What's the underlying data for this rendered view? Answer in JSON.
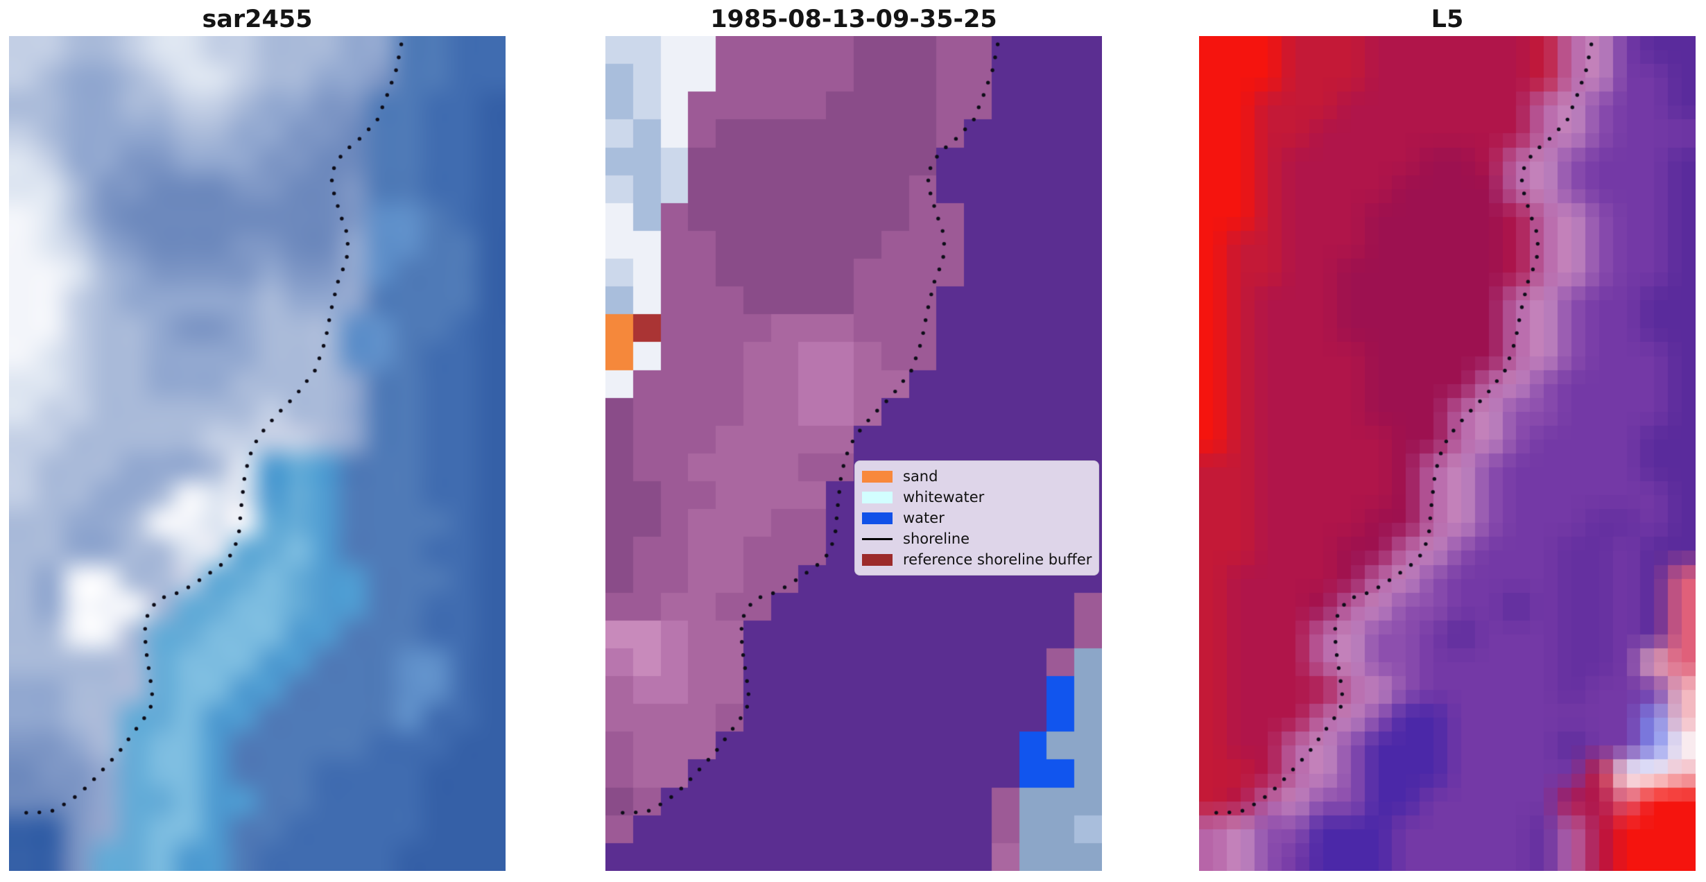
{
  "figure": {
    "background": "#ffffff",
    "kind": "three-panel satellite shoreline figure"
  },
  "legend": {
    "items": [
      {
        "label": "sand",
        "type": "patch",
        "color": "#f8883b"
      },
      {
        "label": "whitewater",
        "type": "patch",
        "color": "#d2feff"
      },
      {
        "label": "water",
        "type": "patch",
        "color": "#1151e8"
      },
      {
        "label": "shoreline",
        "type": "line",
        "color": "#000000"
      },
      {
        "label": "reference shoreline buffer",
        "type": "patch",
        "color": "#9c2b2b"
      }
    ]
  },
  "chart_data": {
    "type": "image",
    "layout": "1x3 image panels, no axes, shared dotted shoreline overlay",
    "grid_cols": 18,
    "grid_rows": 30,
    "panels": [
      {
        "title": "sar2455",
        "render": "smooth",
        "palette": {
          "a": "#f3f5fa",
          "b": "#dde5f1",
          "c": "#c3cfe5",
          "d": "#a9bad9",
          "e": "#92a8d0",
          "f": "#7d96c5",
          "g": "#6d89bd",
          "h": "#4f7ab7",
          "i": "#406cb0",
          "j": "#3560a7",
          "k": "#5f8fc9",
          "l": "#4f9bd1",
          "m": "#64abd7",
          "n": "#7cbce0"
        },
        "grid": [
          "ccddcbbccdddeehhii",
          "cdeedcbbcddeefhhii",
          "ddeeddccdeeffhhiij",
          "cdeeeeddeeffghhiij",
          "bceeffeeeffgghhiij",
          "bbdffgggffggfhhiij",
          "abdfggggggggfkkhij",
          "abcefgggffggekkhhj",
          "aabdeffffeffekhhhj",
          "aacdeeeeedeeehhhhj",
          "aacddeffedddkkhhij",
          "abcddeeeedddkkhiij",
          "bbcddeeeddddehhiij",
          "bccddddddcddehhiij",
          "ccdddddccccdehhiij",
          "cdddeeedblmlhhhiij",
          "cddeedabblmlhhhiij",
          "ddeedaabammlhhhhij",
          "ddeeddbbmmnlhhhiij",
          "deaaddcmmnmllhhhij",
          "deaaadmmnnmllhhiij",
          "ddaadmmnnnllhhhiij",
          "dddddmnnnllhhhkkij",
          "eedddmnnllhhhhkkij",
          "eeddmmnllhhhhhkiij",
          "ffedmnnlhhhhhiiijj",
          "gffemnnlhhhiiiijjj",
          "ggfemmnllhhiiiijjj",
          "jjfemnnlhhiiiiijjj",
          "jjfmmnllhiiiiijjjj"
        ]
      },
      {
        "title": "1985-08-13-09-35-25",
        "render": "blocky",
        "palette": {
          "P": "#5b2e91",
          "q": "#8a4c89",
          "r": "#9d5a96",
          "s": "#aa67a0",
          "t": "#b876ae",
          "u": "#c88abb",
          "v": "#eef1f8",
          "w": "#ccd8eb",
          "x": "#a9bedc",
          "O": "#f5883b",
          "R": "#aa3434",
          "B": "#1155ee",
          "Y": "#8ca6c8"
        },
        "grid": [
          "wwvvrrrrrqqqrrPPPP",
          "xwvvrrrrrqqqrrPPPP",
          "xwvrrrrrqqqqrrPPPP",
          "wxvrqqqqqqqqrPPPPP",
          "xxwqqqqqqqqqPPPPPP",
          "wxwqqqqqqqqrPPPPPP",
          "vxrqqqqqqqqrrPPPPP",
          "vvrrqqqqqqrrrPPPPP",
          "wvrrqqqqqrrrrPPPPP",
          "xvrrrqqqqrrrPPPPPP",
          "ORrrrrsssrrrPPPPPP",
          "OvrrrssttsrrPPPPPP",
          "vrrrrssttssPPPPPPP",
          "qrrrrssttsPPPPPPPP",
          "qrrrsssssPPPPPPPPP",
          "qrrssssrrPPPPPPPPP",
          "qqrrssssPPPPPPPPPP",
          "qqrsssrrPPPPPPPPPP",
          "qrrssrrrPPPPPPPPPP",
          "qrrssrrPPPPPPPPPPP",
          "rrssrrPPPPPPPPPPPr",
          "uutssPPPPPPPPPPPPr",
          "tutssPPPPPPPPPPPrY",
          "sttssPPPPPPPPPPPBY",
          "ssssrPPPPPPPPPPPBY",
          "rsssPPPPPPPPPPPBYY",
          "rssPPPPPPPPPPPPBBY",
          "qrPPPPPPPPPPPPrYYY",
          "rPPPPPPPPPPPPPrYYx",
          "PPPPPPPPPPPPPPsYYY"
        ]
      },
      {
        "title": "L5",
        "render": "hybrid",
        "palette": {
          "A": "#f5140e",
          "D": "#c41937",
          "E": "#b0154a",
          "F": "#9d1150",
          "I": "#b765a8",
          "H": "#c78bc0",
          "J": "#8d4fae",
          "K": "#7439a6",
          "L": "#6530a0",
          "M": "#5a2b9c",
          "N": "#4b28a8",
          "S": "#e0607a",
          "W": "#fcfcff",
          "X": "#f3b9c1",
          "Y": "#7d8cee"
        },
        "grid": [
          "AAADDDEEEEEEDIHKMM",
          "AAADDDEEEEEEDIHKKM",
          "AADDDEEEEEEEIHJKKM",
          "AADDEEEEEEEEIHJKKK",
          "AADEEEEEFFEIHJKKKM",
          "AADEEEEFFFFIHJKKKM",
          "AADEEEFFFFFEIHJKKM",
          "ADDEEEFFFFFEIHJKKM",
          "ADDEEFFFFFFEIHJKKM",
          "ADEEEFFFFFFIHJKKMM",
          "ADEEEFFFFFFIHJKKMM",
          "ADEEEEFFFFFIHJKKKM",
          "ADEEEEFFFFIHJKKKKM",
          "ADEEEEFFFIHJJKKKKM",
          "ADEEEEEFFIHJKKKKMM",
          "DDEEEEEFIHJKKKKKMM",
          "DDEEEEEFIHJKKKKKKM",
          "DDEEEEFFIHJKKKLLKM",
          "DDEEEFFIHJKKKLLKMM",
          "DEEEEFIHJKKKKLLKMS",
          "DEEEFIHJJKKMKLLKMS",
          "DEEEIHJJKMKKKLLKMS",
          "DEEEIHJJKKKKKLLKXS",
          "DEEEEIHJKKKKKLKKKX",
          "DEEEIHJNNKKKKKKKYX",
          "DEEIHJNNNKKKKMKKYW",
          "DDEIHJNNNKKKKKDWWX",
          "DEIHJJNNKKKKKEESAA",
          "IHJJNNNKKKKKLIEAAA",
          "IHJKNNNKKKKKLIEAAA"
        ]
      }
    ],
    "shoreline": {
      "color": "#0d0d18",
      "dot_radius": 2.7,
      "dot_spacing": 19,
      "path": [
        [
          0.79,
          0.01
        ],
        [
          0.78,
          0.04
        ],
        [
          0.762,
          0.07
        ],
        [
          0.742,
          0.1
        ],
        [
          0.712,
          0.12
        ],
        [
          0.672,
          0.14
        ],
        [
          0.648,
          0.165
        ],
        [
          0.655,
          0.19
        ],
        [
          0.668,
          0.215
        ],
        [
          0.683,
          0.24
        ],
        [
          0.68,
          0.268
        ],
        [
          0.662,
          0.295
        ],
        [
          0.648,
          0.33
        ],
        [
          0.637,
          0.365
        ],
        [
          0.617,
          0.4
        ],
        [
          0.578,
          0.43
        ],
        [
          0.537,
          0.455
        ],
        [
          0.502,
          0.48
        ],
        [
          0.483,
          0.505
        ],
        [
          0.474,
          0.53
        ],
        [
          0.468,
          0.562
        ],
        [
          0.463,
          0.595
        ],
        [
          0.452,
          0.618
        ],
        [
          0.428,
          0.633
        ],
        [
          0.4,
          0.645
        ],
        [
          0.373,
          0.656
        ],
        [
          0.345,
          0.666
        ],
        [
          0.302,
          0.674
        ],
        [
          0.28,
          0.69
        ],
        [
          0.273,
          0.714
        ],
        [
          0.277,
          0.74
        ],
        [
          0.285,
          0.772
        ],
        [
          0.29,
          0.798
        ],
        [
          0.276,
          0.814
        ],
        [
          0.251,
          0.834
        ],
        [
          0.221,
          0.858
        ],
        [
          0.19,
          0.878
        ],
        [
          0.159,
          0.898
        ],
        [
          0.124,
          0.916
        ],
        [
          0.087,
          0.928
        ],
        [
          0.046,
          0.931
        ],
        [
          0.012,
          0.929
        ]
      ]
    }
  }
}
